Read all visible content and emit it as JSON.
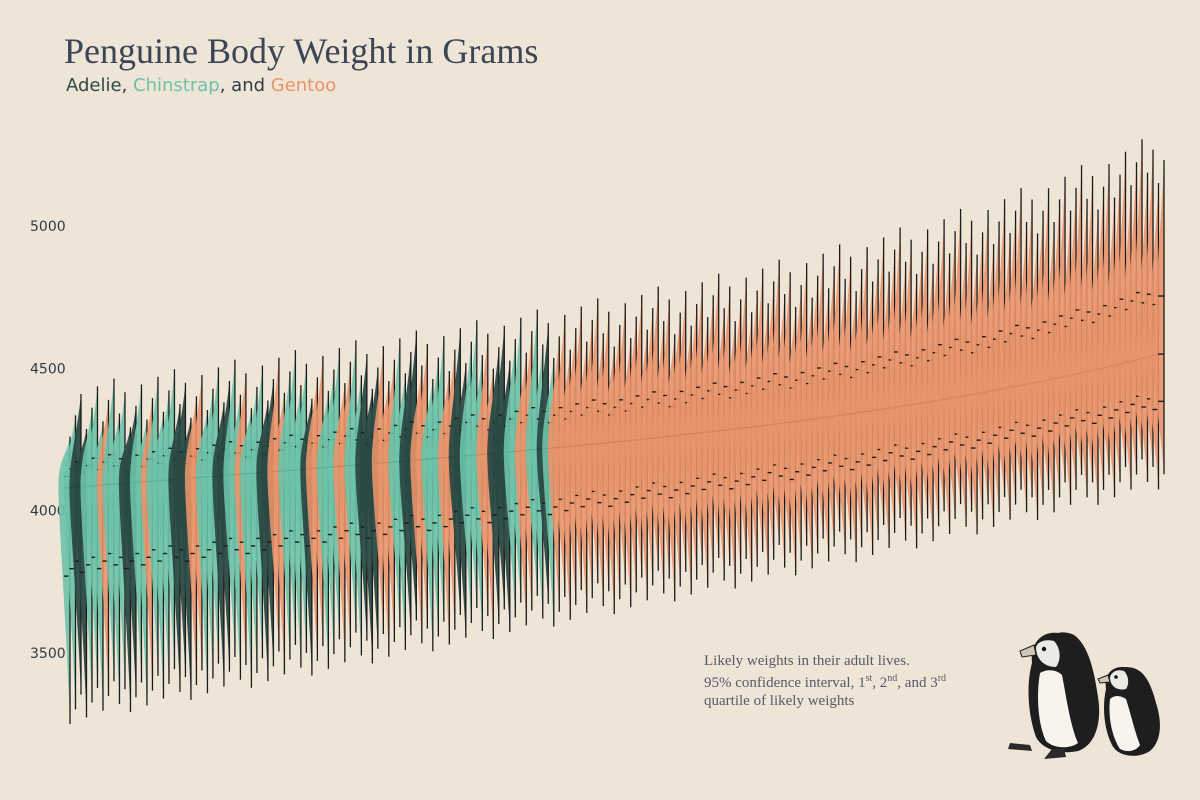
{
  "header": {
    "title": "Penguine Body Weight in Grams",
    "sub_adelie": "Adelie",
    "sub_sep1": ", ",
    "sub_chinstrap": "Chinstrap",
    "sub_sep2": ", and ",
    "sub_gentoo": "Gentoo"
  },
  "note": {
    "line1": "Likely weights in their adult lives.",
    "line2a": "95% confidence interval, 1",
    "sup1": "st",
    "line2b": ", 2",
    "sup2": "nd",
    "line2c": ", and 3",
    "sup3": "rd",
    "line3": "quartile of likely weights"
  },
  "colors": {
    "Adelie": "#2a4a45",
    "Chinstrap": "#6cc2a8",
    "Gentoo": "#e8936a",
    "background": "#efe5d6"
  },
  "chart_data": {
    "type": "violin",
    "title": "Penguine Body Weight in Grams",
    "ylim": [
      3200,
      5300
    ],
    "yticks": [
      3500,
      4000,
      4500,
      5000
    ],
    "grid": false,
    "legend": "none",
    "series": [
      {
        "name": "Adelie",
        "count": 40,
        "first": {
          "ci_low": 3310,
          "q1": 3800,
          "median": 4080,
          "q3": 4150,
          "ci_high": 4350
        },
        "last": {
          "ci_low": 3730,
          "q1": 4020,
          "median": 4200,
          "q3": 4330,
          "ci_high": 4720
        }
      },
      {
        "name": "Chinstrap",
        "count": 60,
        "first": {
          "ci_low": 3330,
          "q1": 3830,
          "median": 4090,
          "q3": 4170,
          "ci_high": 4380
        },
        "last": {
          "ci_low": 3780,
          "q1": 4040,
          "median": 4200,
          "q3": 4360,
          "ci_high": 4760
        }
      },
      {
        "name": "Gentoo",
        "count": 100,
        "first": {
          "ci_low": 3380,
          "q1": 3850,
          "median": 4100,
          "q3": 4190,
          "ci_high": 4420
        },
        "last": {
          "ci_low": 4120,
          "q1": 4360,
          "median": 4550,
          "q3": 4760,
          "ci_high": 5250
        }
      }
    ]
  }
}
